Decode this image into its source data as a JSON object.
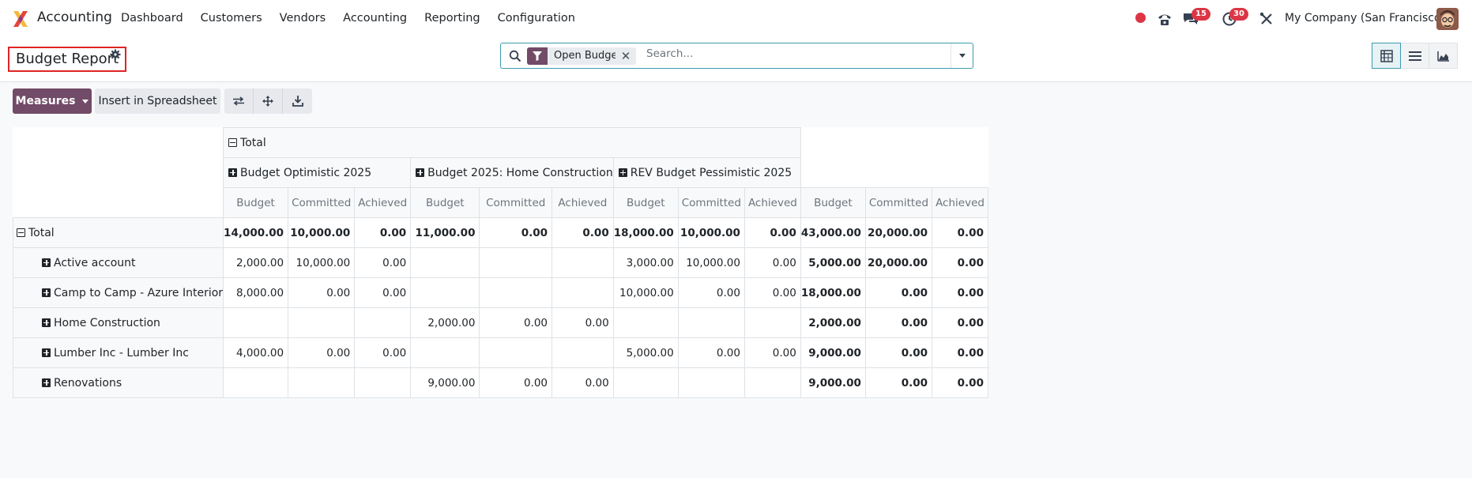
{
  "navbar": {
    "app_name": "Accounting",
    "menu": [
      "Dashboard",
      "Customers",
      "Vendors",
      "Accounting",
      "Reporting",
      "Configuration"
    ],
    "chat_count": "15",
    "activity_count": "30",
    "company": "My Company (San Francisco)"
  },
  "control_panel": {
    "breadcrumb": "Budget Report",
    "search": {
      "facet": "Open Budgets",
      "placeholder": "Search..."
    }
  },
  "toolbar": {
    "measures_label": "Measures",
    "insert_label": "Insert in Spreadsheet"
  },
  "pivot": {
    "total_label": "Total",
    "groups": [
      "Budget Optimistic 2025",
      "Budget 2025: Home Construction",
      "REV Budget Pessimistic 2025"
    ],
    "measures": [
      "Budget",
      "Committed",
      "Achieved"
    ],
    "rows": [
      {
        "label": "Total",
        "values": [
          "14,000.00",
          "10,000.00",
          "0.00",
          "11,000.00",
          "0.00",
          "0.00",
          "18,000.00",
          "10,000.00",
          "0.00",
          "43,000.00",
          "20,000.00",
          "0.00"
        ]
      },
      {
        "label": "Active account",
        "values": [
          "2,000.00",
          "10,000.00",
          "0.00",
          "",
          "",
          "",
          "3,000.00",
          "10,000.00",
          "0.00",
          "5,000.00",
          "20,000.00",
          "0.00"
        ]
      },
      {
        "label": "Camp to Camp - Azure Interior",
        "values": [
          "8,000.00",
          "0.00",
          "0.00",
          "",
          "",
          "",
          "10,000.00",
          "0.00",
          "0.00",
          "18,000.00",
          "0.00",
          "0.00"
        ]
      },
      {
        "label": "Home Construction",
        "values": [
          "",
          "",
          "",
          "2,000.00",
          "0.00",
          "0.00",
          "",
          "",
          "",
          "2,000.00",
          "0.00",
          "0.00"
        ]
      },
      {
        "label": "Lumber Inc - Lumber Inc",
        "values": [
          "4,000.00",
          "0.00",
          "0.00",
          "",
          "",
          "",
          "5,000.00",
          "0.00",
          "0.00",
          "9,000.00",
          "0.00",
          "0.00"
        ]
      },
      {
        "label": "Renovations",
        "values": [
          "",
          "",
          "",
          "9,000.00",
          "0.00",
          "0.00",
          "",
          "",
          "",
          "9,000.00",
          "0.00",
          "0.00"
        ]
      }
    ]
  },
  "colors": {
    "brand": "#714b67",
    "accent": "#3c9cad",
    "badge": "#dc3545"
  }
}
